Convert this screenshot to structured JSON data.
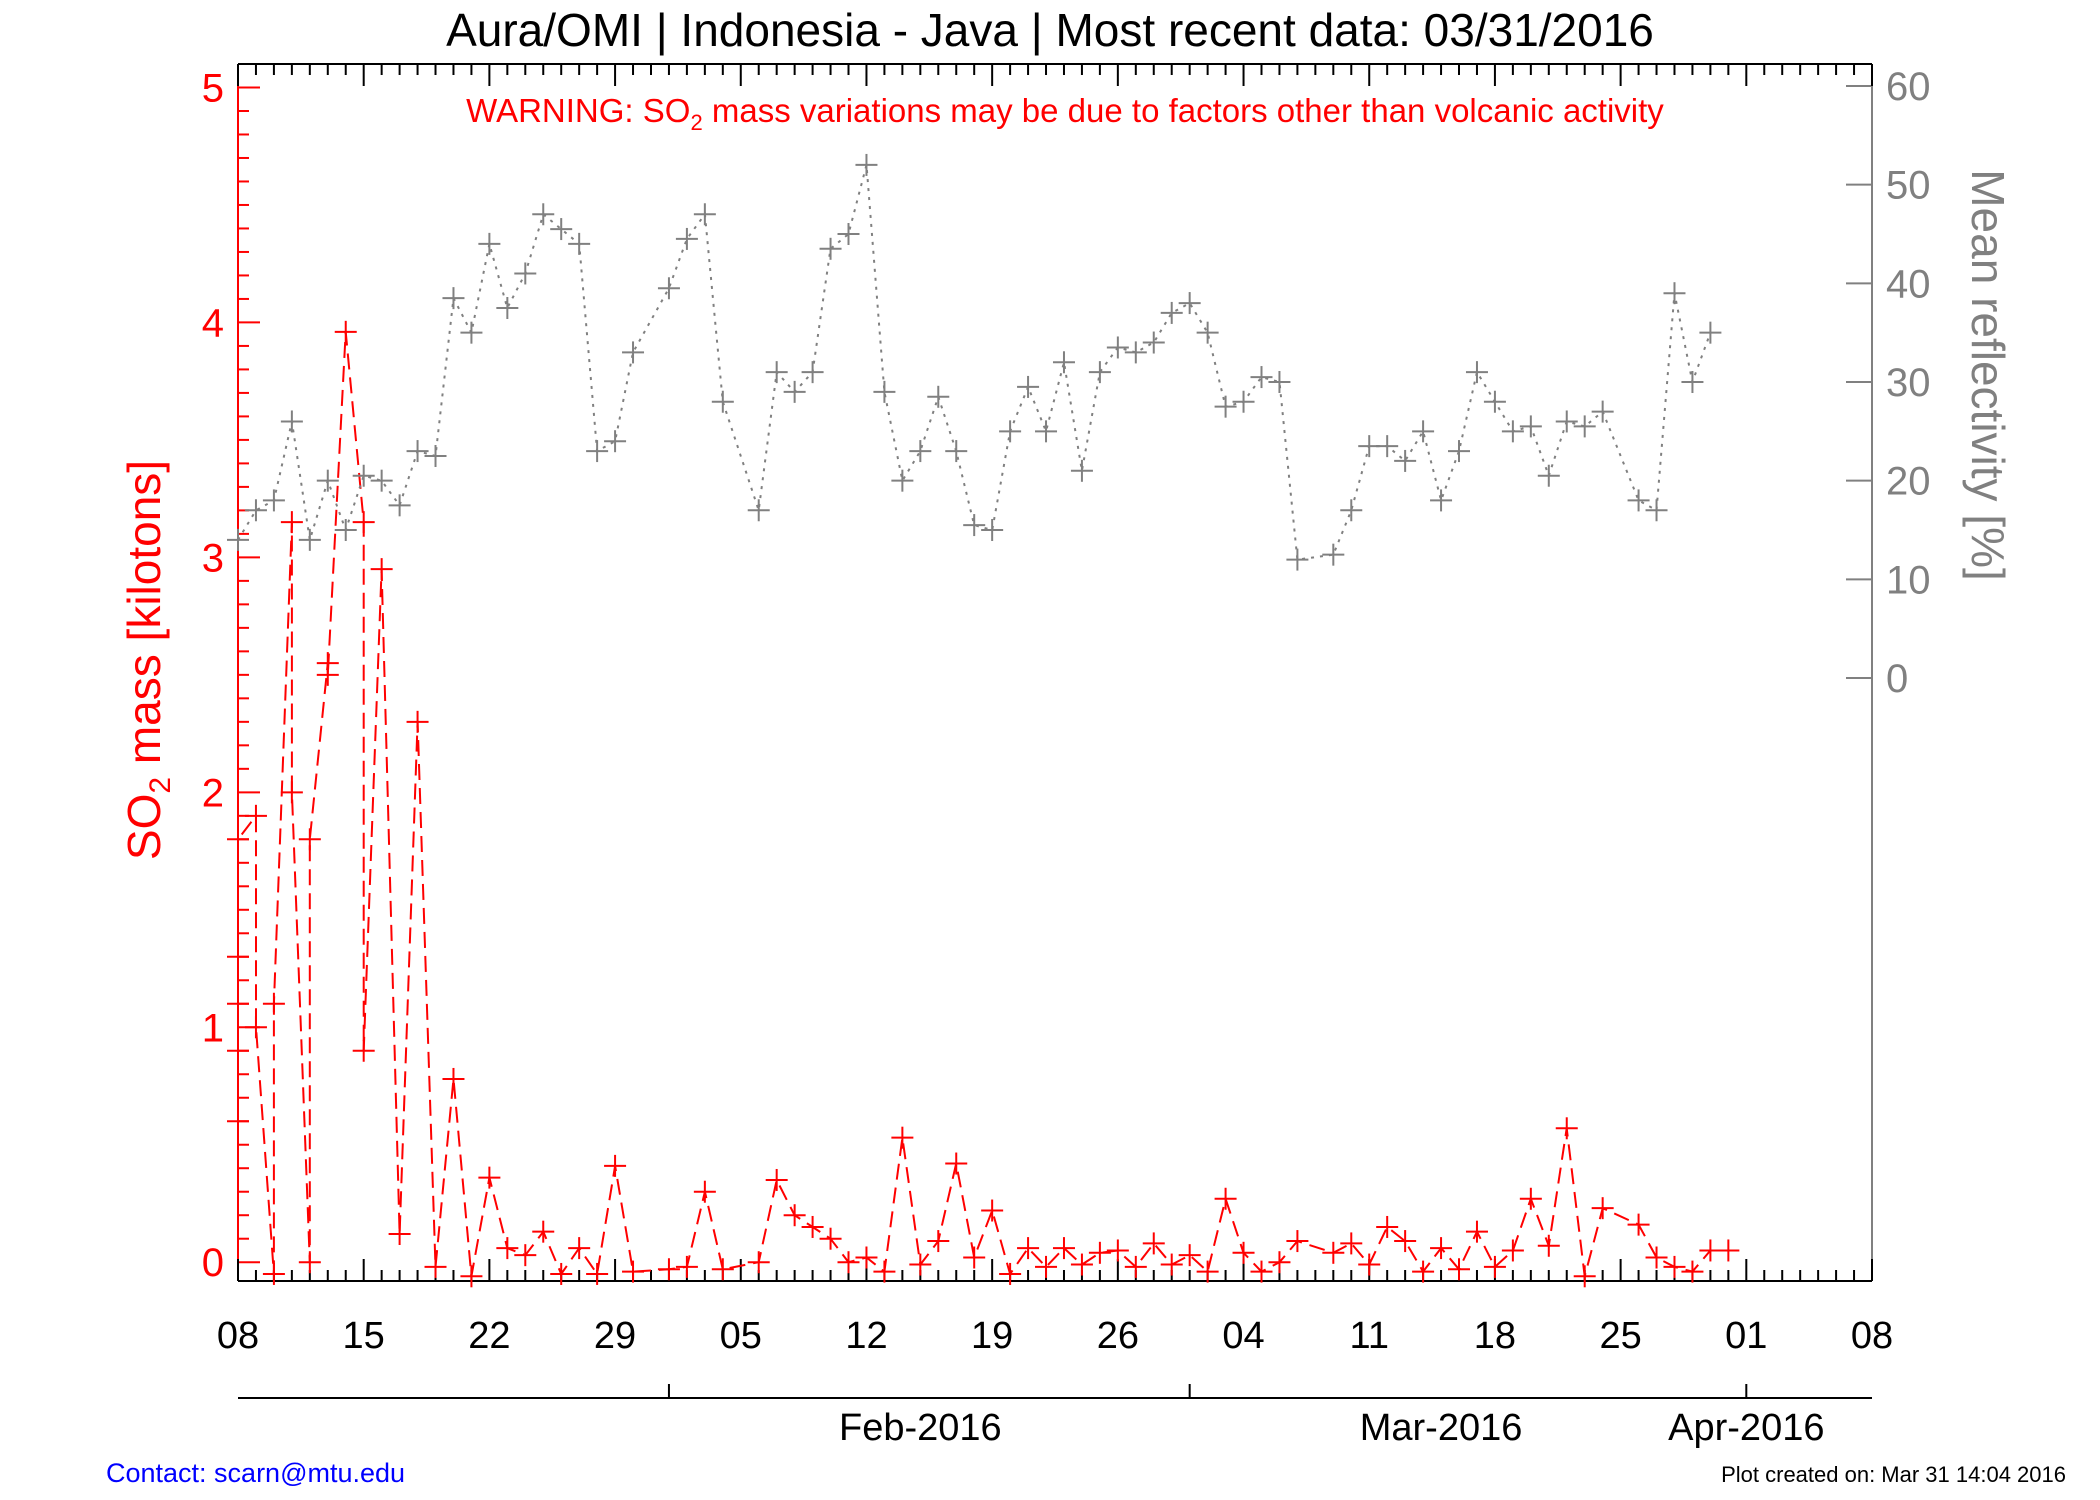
{
  "chart_data": {
    "type": "line",
    "title": "Aura/OMI | Indonesia - Java | Most recent data: 03/31/2016",
    "warning": {
      "prefix": "WARNING: SO",
      "sub": "2",
      "suffix": " mass variations may be due to factors other than volcanic activity",
      "color": "#ff0000"
    },
    "ylabel_left": {
      "prefix": "SO",
      "sub": "2",
      "suffix": " mass [kilotons]",
      "color": "#ff0000"
    },
    "ylabel_right": {
      "text": "Mean reflectivity [%]",
      "color": "#808080"
    },
    "ylim_left": [
      -0.08,
      5.1
    ],
    "ylim_right": [
      0,
      60
    ],
    "yticks_left": [
      "0",
      "1",
      "2",
      "3",
      "4",
      "5"
    ],
    "yticks_right": [
      "0",
      "10",
      "20",
      "30",
      "40",
      "50",
      "60"
    ],
    "x_range_days": [
      "2016-01-08",
      "2016-04-08"
    ],
    "x_tick_labels": [
      "08",
      "15",
      "22",
      "29",
      "05",
      "12",
      "19",
      "26",
      "04",
      "11",
      "18",
      "25",
      "01",
      "08"
    ],
    "month_labels": [
      "Feb-2016",
      "Mar-2016",
      "Apr-2016"
    ],
    "series": [
      {
        "name": "SO2 mass",
        "axis": "left",
        "color": "#ff0000",
        "style": "dashed",
        "x": [
          "2016-01-08",
          "2016-01-08",
          "2016-01-08",
          "2016-01-08",
          "2016-01-08",
          "2016-01-09",
          "2016-01-09",
          "2016-01-10",
          "2016-01-10",
          "2016-01-11",
          "2016-01-11",
          "2016-01-12",
          "2016-01-12",
          "2016-01-13",
          "2016-01-13",
          "2016-01-14",
          "2016-01-15",
          "2016-01-15",
          "2016-01-16",
          "2016-01-17",
          "2016-01-18",
          "2016-01-19",
          "2016-01-20",
          "2016-01-21",
          "2016-01-22",
          "2016-01-23",
          "2016-01-24",
          "2016-01-25",
          "2016-01-26",
          "2016-01-27",
          "2016-01-28",
          "2016-01-29",
          "2016-01-30",
          "2016-02-01",
          "2016-02-02",
          "2016-02-03",
          "2016-02-04",
          "2016-02-06",
          "2016-02-07",
          "2016-02-08",
          "2016-02-09",
          "2016-02-10",
          "2016-02-11",
          "2016-02-12",
          "2016-02-13",
          "2016-02-14",
          "2016-02-15",
          "2016-02-16",
          "2016-02-17",
          "2016-02-18",
          "2016-02-19",
          "2016-02-20",
          "2016-02-21",
          "2016-02-22",
          "2016-02-23",
          "2016-02-24",
          "2016-02-25",
          "2016-02-26",
          "2016-02-27",
          "2016-02-28",
          "2016-02-29",
          "2016-03-01",
          "2016-03-02",
          "2016-03-03",
          "2016-03-04",
          "2016-03-05",
          "2016-03-06",
          "2016-03-07",
          "2016-03-09",
          "2016-03-10",
          "2016-03-11",
          "2016-03-12",
          "2016-03-13",
          "2016-03-14",
          "2016-03-15",
          "2016-03-16",
          "2016-03-17",
          "2016-03-18",
          "2016-03-19",
          "2016-03-20",
          "2016-03-21",
          "2016-03-22",
          "2016-03-23",
          "2016-03-24",
          "2016-03-26",
          "2016-03-27",
          "2016-03-28",
          "2016-03-29",
          "2016-03-30",
          "2016-03-31"
        ],
        "values": [
          0.6,
          0.9,
          1.1,
          1.3,
          1.8,
          1.9,
          1.0,
          -0.05,
          1.1,
          3.15,
          2.0,
          0.0,
          1.8,
          2.55,
          2.5,
          3.96,
          3.15,
          0.9,
          2.95,
          0.12,
          2.3,
          -0.02,
          0.78,
          -0.06,
          0.36,
          0.06,
          0.03,
          0.13,
          -0.05,
          0.06,
          -0.05,
          0.41,
          -0.04,
          -0.03,
          -0.02,
          0.3,
          -0.03,
          0.0,
          0.35,
          0.2,
          0.15,
          0.1,
          0.0,
          0.02,
          -0.04,
          0.53,
          -0.01,
          0.09,
          0.42,
          0.02,
          0.22,
          -0.05,
          0.06,
          -0.02,
          0.06,
          -0.01,
          0.04,
          0.05,
          -0.02,
          0.08,
          -0.01,
          0.03,
          -0.04,
          0.27,
          0.04,
          -0.04,
          0.0,
          0.09,
          0.04,
          0.08,
          -0.01,
          0.15,
          0.09,
          -0.04,
          0.06,
          -0.03,
          0.13,
          -0.02,
          0.05,
          0.27,
          0.07,
          0.57,
          -0.06,
          0.23,
          0.16,
          0.02,
          -0.02,
          -0.04,
          0.05,
          0.05
        ]
      },
      {
        "name": "Mean reflectivity",
        "axis": "right",
        "color": "#808080",
        "style": "dotted",
        "x": [
          "2016-01-08",
          "2016-01-09",
          "2016-01-10",
          "2016-01-11",
          "2016-01-12",
          "2016-01-13",
          "2016-01-14",
          "2016-01-15",
          "2016-01-16",
          "2016-01-17",
          "2016-01-18",
          "2016-01-19",
          "2016-01-20",
          "2016-01-21",
          "2016-01-22",
          "2016-01-23",
          "2016-01-24",
          "2016-01-25",
          "2016-01-26",
          "2016-01-27",
          "2016-01-28",
          "2016-01-29",
          "2016-01-30",
          "2016-02-01",
          "2016-02-02",
          "2016-02-03",
          "2016-02-04",
          "2016-02-06",
          "2016-02-07",
          "2016-02-08",
          "2016-02-09",
          "2016-02-10",
          "2016-02-11",
          "2016-02-12",
          "2016-02-13",
          "2016-02-14",
          "2016-02-15",
          "2016-02-16",
          "2016-02-17",
          "2016-02-18",
          "2016-02-19",
          "2016-02-20",
          "2016-02-21",
          "2016-02-22",
          "2016-02-23",
          "2016-02-24",
          "2016-02-25",
          "2016-02-26",
          "2016-02-27",
          "2016-02-28",
          "2016-02-29",
          "2016-03-01",
          "2016-03-02",
          "2016-03-03",
          "2016-03-04",
          "2016-03-05",
          "2016-03-06",
          "2016-03-07",
          "2016-03-09",
          "2016-03-10",
          "2016-03-11",
          "2016-03-12",
          "2016-03-13",
          "2016-03-14",
          "2016-03-15",
          "2016-03-16",
          "2016-03-17",
          "2016-03-18",
          "2016-03-19",
          "2016-03-20",
          "2016-03-21",
          "2016-03-22",
          "2016-03-23",
          "2016-03-24",
          "2016-03-26",
          "2016-03-27",
          "2016-03-28",
          "2016-03-29",
          "2016-03-30"
        ],
        "values": [
          14,
          17,
          18,
          26,
          14,
          20,
          15,
          20.5,
          20,
          17.5,
          23,
          22.5,
          38.5,
          35,
          44,
          37.5,
          41,
          47,
          45.5,
          44,
          23,
          24,
          33,
          39.5,
          44.5,
          47,
          28,
          17,
          31,
          29,
          31,
          43.5,
          45,
          52,
          29,
          20,
          23,
          28.5,
          23,
          15.5,
          15,
          25,
          29.5,
          25,
          32,
          21,
          31,
          33.5,
          33,
          34,
          37,
          38,
          35,
          27.5,
          28,
          30.5,
          30,
          12,
          12.5,
          17,
          23.5,
          23.5,
          22,
          25,
          18,
          23,
          31,
          28,
          25,
          25.5,
          20.5,
          26,
          25.5,
          27,
          18,
          17,
          39,
          30,
          35
        ]
      }
    ]
  },
  "footer": {
    "contact": "Contact: scarn@mtu.edu",
    "created": "Plot created on: Mar 31 14:04 2016"
  }
}
